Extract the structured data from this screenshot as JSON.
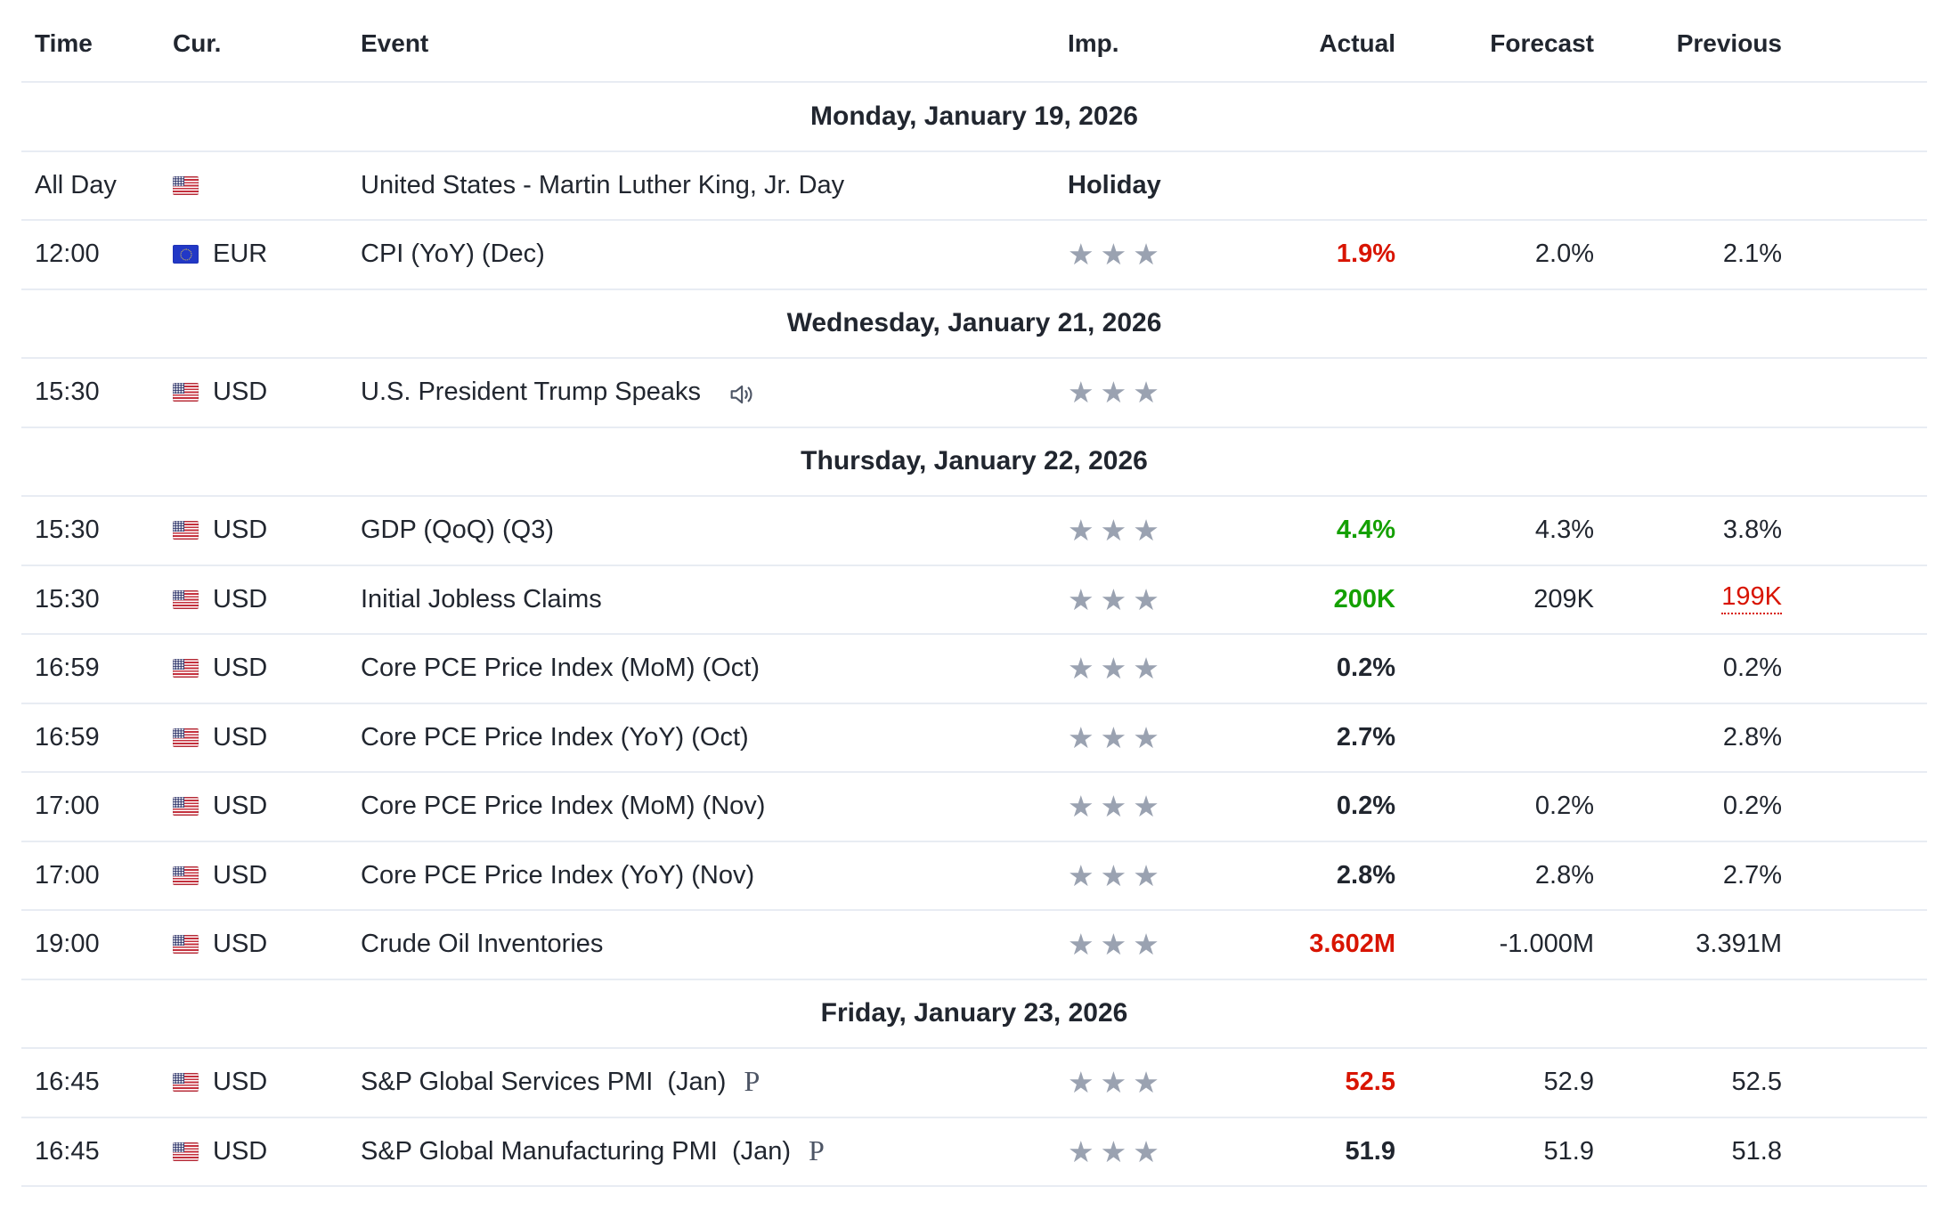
{
  "colors": {
    "text": "#21262f",
    "border": "#e8ecf3",
    "negative": "#d81400",
    "positive": "#14a000",
    "star": "#9aa2b1",
    "muted-icon": "#4d5565",
    "bg": "#ffffff"
  },
  "icons": {
    "star": "★",
    "speaker": "speaker-outline-icon",
    "us_flag": "us-flag-icon",
    "eu_flag": "eu-flag-icon"
  },
  "table": {
    "columns": [
      "Time",
      "Cur.",
      "Event",
      "Imp.",
      "Actual",
      "Forecast",
      "Previous"
    ],
    "preliminary_marker": "P",
    "max_stars": 3,
    "rows": [
      {
        "type": "date",
        "label": "Monday, January 19, 2026"
      },
      {
        "type": "event",
        "time": "All Day",
        "flag": "us",
        "currency": "",
        "event": "United States - Martin Luther King, Jr. Day",
        "holiday": "Holiday",
        "stars": 0,
        "actual": "",
        "forecast": "",
        "previous": ""
      },
      {
        "type": "event",
        "time": "12:00",
        "flag": "eu",
        "currency": "EUR",
        "event": "CPI (YoY) (Dec)",
        "stars": 3,
        "actual": "1.9%",
        "actual_style": "red",
        "forecast": "2.0%",
        "previous": "2.1%"
      },
      {
        "type": "date",
        "label": "Wednesday, January 21, 2026"
      },
      {
        "type": "event",
        "time": "15:30",
        "flag": "us",
        "currency": "USD",
        "event": "U.S. President Trump Speaks",
        "speaker": true,
        "stars": 3,
        "actual": "",
        "forecast": "",
        "previous": ""
      },
      {
        "type": "date",
        "label": "Thursday, January 22, 2026"
      },
      {
        "type": "event",
        "time": "15:30",
        "flag": "us",
        "currency": "USD",
        "event": "GDP (QoQ) (Q3)",
        "stars": 3,
        "actual": "4.4%",
        "actual_style": "green",
        "forecast": "4.3%",
        "previous": "3.8%"
      },
      {
        "type": "event",
        "time": "15:30",
        "flag": "us",
        "currency": "USD",
        "event": "Initial Jobless Claims",
        "stars": 3,
        "actual": "200K",
        "actual_style": "green",
        "forecast": "209K",
        "previous": "199K",
        "previous_style": "revised"
      },
      {
        "type": "event",
        "time": "16:59",
        "flag": "us",
        "currency": "USD",
        "event": "Core PCE Price Index (MoM) (Oct)",
        "stars": 3,
        "actual": "0.2%",
        "forecast": "",
        "previous": "0.2%"
      },
      {
        "type": "event",
        "time": "16:59",
        "flag": "us",
        "currency": "USD",
        "event": "Core PCE Price Index (YoY) (Oct)",
        "stars": 3,
        "actual": "2.7%",
        "forecast": "",
        "previous": "2.8%"
      },
      {
        "type": "event",
        "time": "17:00",
        "flag": "us",
        "currency": "USD",
        "event": "Core PCE Price Index (MoM) (Nov)",
        "stars": 3,
        "actual": "0.2%",
        "forecast": "0.2%",
        "previous": "0.2%"
      },
      {
        "type": "event",
        "time": "17:00",
        "flag": "us",
        "currency": "USD",
        "event": "Core PCE Price Index (YoY) (Nov)",
        "stars": 3,
        "actual": "2.8%",
        "forecast": "2.8%",
        "previous": "2.7%"
      },
      {
        "type": "event",
        "time": "19:00",
        "flag": "us",
        "currency": "USD",
        "event": "Crude Oil Inventories",
        "stars": 3,
        "actual": "3.602M",
        "actual_style": "red",
        "forecast": "-1.000M",
        "previous": "3.391M"
      },
      {
        "type": "date",
        "label": "Friday, January 23, 2026"
      },
      {
        "type": "event",
        "time": "16:45",
        "flag": "us",
        "currency": "USD",
        "event": "S&P Global Services PMI  (Jan)",
        "preliminary": true,
        "stars": 3,
        "actual": "52.5",
        "actual_style": "red",
        "forecast": "52.9",
        "previous": "52.5"
      },
      {
        "type": "event",
        "time": "16:45",
        "flag": "us",
        "currency": "USD",
        "event": "S&P Global Manufacturing PMI  (Jan)",
        "preliminary": true,
        "stars": 3,
        "actual": "51.9",
        "forecast": "51.9",
        "previous": "51.8"
      }
    ]
  }
}
